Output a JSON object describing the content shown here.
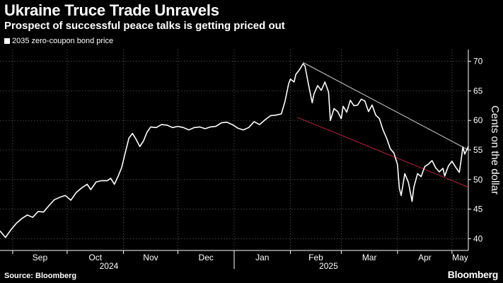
{
  "chart_data": {
    "type": "line",
    "title": "Ukraine Truce Trade Unravels",
    "subtitle": "Prospect of successful peace talks is getting priced out",
    "legend": [
      "2035 zero-coupon bond price"
    ],
    "ylabel": "Cents on the dollar",
    "ylim": [
      38,
      72
    ],
    "yticks": [
      40,
      45,
      50,
      55,
      60,
      65,
      70
    ],
    "x_months": [
      "Sep",
      "Oct",
      "Nov",
      "Dec",
      "Jan",
      "Feb",
      "Mar",
      "Apr",
      "May"
    ],
    "x_years": [
      "2024",
      "2025"
    ],
    "xlim_days": [
      0,
      258
    ],
    "series": [
      {
        "name": "2035 zero-coupon bond price",
        "color": "#ffffff",
        "points": [
          [
            0,
            41.3
          ],
          [
            3,
            40.2
          ],
          [
            6,
            41.5
          ],
          [
            9,
            42.6
          ],
          [
            12,
            43.4
          ],
          [
            15,
            44.0
          ],
          [
            18,
            43.6
          ],
          [
            21,
            44.6
          ],
          [
            24,
            44.5
          ],
          [
            27,
            45.6
          ],
          [
            30,
            46.6
          ],
          [
            33,
            47.0
          ],
          [
            36,
            47.3
          ],
          [
            39,
            46.5
          ],
          [
            42,
            47.8
          ],
          [
            45,
            48.6
          ],
          [
            48,
            49.2
          ],
          [
            50,
            48.3
          ],
          [
            53,
            49.6
          ],
          [
            56,
            49.8
          ],
          [
            59,
            49.8
          ],
          [
            61,
            50.2
          ],
          [
            63,
            49.2
          ],
          [
            65,
            50.5
          ],
          [
            67,
            52.0
          ],
          [
            69,
            54.5
          ],
          [
            71,
            57.0
          ],
          [
            73,
            57.8
          ],
          [
            75,
            56.8
          ],
          [
            77,
            55.6
          ],
          [
            79,
            56.5
          ],
          [
            81,
            58.0
          ],
          [
            83,
            58.9
          ],
          [
            86,
            58.8
          ],
          [
            89,
            59.3
          ],
          [
            92,
            59.2
          ],
          [
            95,
            58.8
          ],
          [
            98,
            59.0
          ],
          [
            101,
            58.8
          ],
          [
            104,
            58.4
          ],
          [
            107,
            58.8
          ],
          [
            110,
            58.9
          ],
          [
            113,
            58.6
          ],
          [
            116,
            58.9
          ],
          [
            119,
            59.0
          ],
          [
            122,
            59.6
          ],
          [
            125,
            59.7
          ],
          [
            128,
            59.3
          ],
          [
            131,
            58.7
          ],
          [
            134,
            58.4
          ],
          [
            137,
            58.8
          ],
          [
            140,
            59.8
          ],
          [
            143,
            59.3
          ],
          [
            146,
            60.1
          ],
          [
            149,
            60.8
          ],
          [
            152,
            60.9
          ],
          [
            155,
            61.1
          ],
          [
            157,
            63.2
          ],
          [
            159,
            66.2
          ],
          [
            160,
            67.0
          ],
          [
            162,
            66.5
          ],
          [
            163,
            67.8
          ],
          [
            165,
            68.6
          ],
          [
            167,
            69.6
          ],
          [
            168,
            69.2
          ],
          [
            170,
            66.0
          ],
          [
            172,
            63.0
          ],
          [
            173,
            64.5
          ],
          [
            175,
            65.9
          ],
          [
            177,
            65.1
          ],
          [
            179,
            66.5
          ],
          [
            181,
            64.8
          ],
          [
            182,
            60.0
          ],
          [
            184,
            62.0
          ],
          [
            186,
            61.5
          ],
          [
            188,
            60.3
          ],
          [
            189,
            62.4
          ],
          [
            191,
            61.4
          ],
          [
            193,
            63.4
          ],
          [
            195,
            62.5
          ],
          [
            197,
            62.6
          ],
          [
            199,
            63.6
          ],
          [
            201,
            63.3
          ],
          [
            203,
            61.5
          ],
          [
            205,
            62.6
          ],
          [
            207,
            60.9
          ],
          [
            209,
            60.3
          ],
          [
            211,
            58.4
          ],
          [
            213,
            57.0
          ],
          [
            215,
            55.2
          ],
          [
            217,
            54.5
          ],
          [
            219,
            52.5
          ],
          [
            220,
            48.5
          ],
          [
            221,
            47.3
          ],
          [
            223,
            51.0
          ],
          [
            225,
            49.5
          ],
          [
            227,
            46.3
          ],
          [
            228,
            48.7
          ],
          [
            230,
            51.0
          ],
          [
            232,
            50.5
          ],
          [
            234,
            52.2
          ],
          [
            236,
            52.6
          ],
          [
            238,
            53.2
          ],
          [
            240,
            52.0
          ],
          [
            242,
            51.3
          ],
          [
            244,
            51.9
          ],
          [
            245,
            50.6
          ],
          [
            247,
            52.3
          ],
          [
            249,
            53.1
          ],
          [
            251,
            52.1
          ],
          [
            253,
            51.2
          ],
          [
            254,
            53.2
          ],
          [
            255,
            55.5
          ],
          [
            256,
            54.3
          ],
          [
            258,
            55.6
          ]
        ]
      }
    ],
    "trendlines": [
      {
        "name": "upper-trendline",
        "color": "#cfcfcf",
        "from": [
          167,
          69.8
        ],
        "to": [
          258,
          55.0
        ]
      },
      {
        "name": "lower-trendline",
        "color": "#b3243f",
        "from": [
          164,
          60.5
        ],
        "to": [
          258,
          48.7
        ]
      }
    ]
  },
  "footer": {
    "source": "Source: Bloomberg",
    "brand": "Bloomberg"
  }
}
